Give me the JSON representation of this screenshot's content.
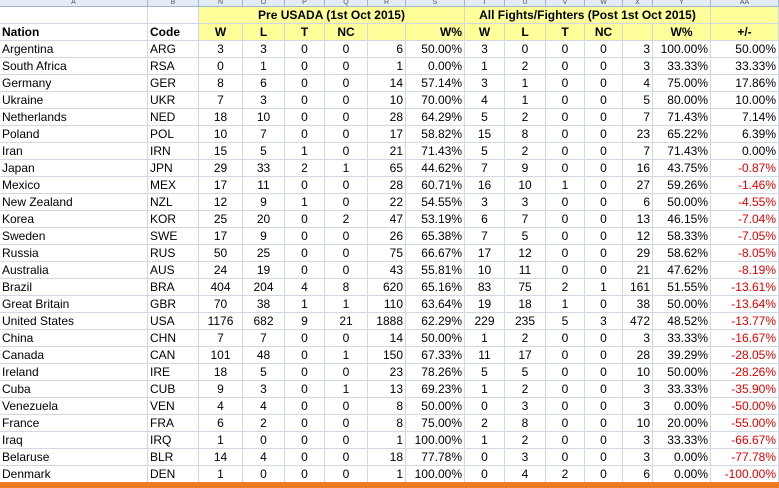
{
  "col_letters": [
    "A",
    "B",
    "N",
    "O",
    "P",
    "Q",
    "R",
    "S",
    "T",
    "U",
    "V",
    "W",
    "X",
    "Y",
    "AA"
  ],
  "groups": {
    "pre": "Pre USADA (1st Oct 2015)",
    "post": "All Fights/Fighters (Post 1st Oct 2015)"
  },
  "headers": {
    "nation": "Nation",
    "code": "Code",
    "w": "W",
    "l": "L",
    "t": "T",
    "nc": "NC",
    "wpct": "W%",
    "diff": "+/-"
  },
  "rows": [
    [
      "Argentina",
      "ARG",
      "3",
      "3",
      "0",
      "0",
      "6",
      "50.00%",
      "3",
      "0",
      "0",
      "0",
      "3",
      "100.00%",
      "50.00%"
    ],
    [
      "South Africa",
      "RSA",
      "0",
      "1",
      "0",
      "0",
      "1",
      "0.00%",
      "1",
      "2",
      "0",
      "0",
      "3",
      "33.33%",
      "33.33%"
    ],
    [
      "Germany",
      "GER",
      "8",
      "6",
      "0",
      "0",
      "14",
      "57.14%",
      "3",
      "1",
      "0",
      "0",
      "4",
      "75.00%",
      "17.86%"
    ],
    [
      "Ukraine",
      "UKR",
      "7",
      "3",
      "0",
      "0",
      "10",
      "70.00%",
      "4",
      "1",
      "0",
      "0",
      "5",
      "80.00%",
      "10.00%"
    ],
    [
      "Netherlands",
      "NED",
      "18",
      "10",
      "0",
      "0",
      "28",
      "64.29%",
      "5",
      "2",
      "0",
      "0",
      "7",
      "71.43%",
      "7.14%"
    ],
    [
      "Poland",
      "POL",
      "10",
      "7",
      "0",
      "0",
      "17",
      "58.82%",
      "15",
      "8",
      "0",
      "0",
      "23",
      "65.22%",
      "6.39%"
    ],
    [
      "Iran",
      "IRN",
      "15",
      "5",
      "1",
      "0",
      "21",
      "71.43%",
      "5",
      "2",
      "0",
      "0",
      "7",
      "71.43%",
      "0.00%"
    ],
    [
      "Japan",
      "JPN",
      "29",
      "33",
      "2",
      "1",
      "65",
      "44.62%",
      "7",
      "9",
      "0",
      "0",
      "16",
      "43.75%",
      "-0.87%"
    ],
    [
      "Mexico",
      "MEX",
      "17",
      "11",
      "0",
      "0",
      "28",
      "60.71%",
      "16",
      "10",
      "1",
      "0",
      "27",
      "59.26%",
      "-1.46%"
    ],
    [
      "New Zealand",
      "NZL",
      "12",
      "9",
      "1",
      "0",
      "22",
      "54.55%",
      "3",
      "3",
      "0",
      "0",
      "6",
      "50.00%",
      "-4.55%"
    ],
    [
      "Korea",
      "KOR",
      "25",
      "20",
      "0",
      "2",
      "47",
      "53.19%",
      "6",
      "7",
      "0",
      "0",
      "13",
      "46.15%",
      "-7.04%"
    ],
    [
      "Sweden",
      "SWE",
      "17",
      "9",
      "0",
      "0",
      "26",
      "65.38%",
      "7",
      "5",
      "0",
      "0",
      "12",
      "58.33%",
      "-7.05%"
    ],
    [
      "Russia",
      "RUS",
      "50",
      "25",
      "0",
      "0",
      "75",
      "66.67%",
      "17",
      "12",
      "0",
      "0",
      "29",
      "58.62%",
      "-8.05%"
    ],
    [
      "Australia",
      "AUS",
      "24",
      "19",
      "0",
      "0",
      "43",
      "55.81%",
      "10",
      "11",
      "0",
      "0",
      "21",
      "47.62%",
      "-8.19%"
    ],
    [
      "Brazil",
      "BRA",
      "404",
      "204",
      "4",
      "8",
      "620",
      "65.16%",
      "83",
      "75",
      "2",
      "1",
      "161",
      "51.55%",
      "-13.61%"
    ],
    [
      "Great Britain",
      "GBR",
      "70",
      "38",
      "1",
      "1",
      "110",
      "63.64%",
      "19",
      "18",
      "1",
      "0",
      "38",
      "50.00%",
      "-13.64%"
    ],
    [
      "United States",
      "USA",
      "1176",
      "682",
      "9",
      "21",
      "1888",
      "62.29%",
      "229",
      "235",
      "5",
      "3",
      "472",
      "48.52%",
      "-13.77%"
    ],
    [
      "China",
      "CHN",
      "7",
      "7",
      "0",
      "0",
      "14",
      "50.00%",
      "1",
      "2",
      "0",
      "0",
      "3",
      "33.33%",
      "-16.67%"
    ],
    [
      "Canada",
      "CAN",
      "101",
      "48",
      "0",
      "1",
      "150",
      "67.33%",
      "11",
      "17",
      "0",
      "0",
      "28",
      "39.29%",
      "-28.05%"
    ],
    [
      "Ireland",
      "IRE",
      "18",
      "5",
      "0",
      "0",
      "23",
      "78.26%",
      "5",
      "5",
      "0",
      "0",
      "10",
      "50.00%",
      "-28.26%"
    ],
    [
      "Cuba",
      "CUB",
      "9",
      "3",
      "0",
      "1",
      "13",
      "69.23%",
      "1",
      "2",
      "0",
      "0",
      "3",
      "33.33%",
      "-35.90%"
    ],
    [
      "Venezuela",
      "VEN",
      "4",
      "4",
      "0",
      "0",
      "8",
      "50.00%",
      "0",
      "3",
      "0",
      "0",
      "3",
      "0.00%",
      "-50.00%"
    ],
    [
      "France",
      "FRA",
      "6",
      "2",
      "0",
      "0",
      "8",
      "75.00%",
      "2",
      "8",
      "0",
      "0",
      "10",
      "20.00%",
      "-55.00%"
    ],
    [
      "Iraq",
      "IRQ",
      "1",
      "0",
      "0",
      "0",
      "1",
      "100.00%",
      "1",
      "2",
      "0",
      "0",
      "3",
      "33.33%",
      "-66.67%"
    ],
    [
      "Belaruse",
      "BLR",
      "14",
      "4",
      "0",
      "0",
      "18",
      "77.78%",
      "0",
      "3",
      "0",
      "0",
      "3",
      "0.00%",
      "-77.78%"
    ],
    [
      "Denmark",
      "DEN",
      "1",
      "0",
      "0",
      "0",
      "1",
      "100.00%",
      "0",
      "4",
      "2",
      "0",
      "6",
      "0.00%",
      "-100.00%"
    ]
  ],
  "colors": {
    "header_fill": "#ffff99",
    "negative": "#e00000",
    "bottom_bar": "#f07b22"
  }
}
